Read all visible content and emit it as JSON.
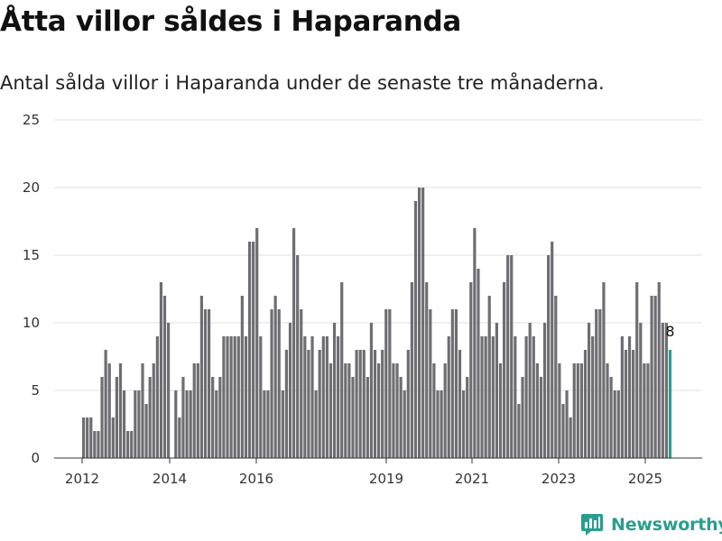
{
  "title": "Åtta villor såldes i Haparanda",
  "subtitle": "Antal sålda villor i Haparanda under de senaste tre månaderna.",
  "brand": {
    "name": "Newsworthy",
    "icon": "newsworthy-logo-icon"
  },
  "colors": {
    "bar": "#6e6d72",
    "highlight": "#2a9d8f",
    "grid": "#e0e0e0",
    "axis": "#333333"
  },
  "chart_data": {
    "type": "bar",
    "title": "Åtta villor såldes i Haparanda",
    "subtitle": "Antal sålda villor i Haparanda under de senaste tre månaderna.",
    "xlabel": "",
    "ylabel": "",
    "ylim": [
      0,
      25
    ],
    "yticks": [
      0,
      5,
      10,
      15,
      20,
      25
    ],
    "xticks": [
      "2012",
      "2014",
      "2016",
      "2019",
      "2021",
      "2023",
      "2025"
    ],
    "grid": true,
    "legend": "none",
    "series": [
      {
        "values": [
          3,
          3,
          3,
          2,
          2,
          6,
          8,
          7,
          3,
          6,
          7,
          5,
          2,
          2,
          5,
          5,
          7,
          4,
          6,
          7,
          9,
          13,
          12,
          10,
          0,
          5,
          3,
          6,
          5,
          5,
          7,
          7,
          12,
          11,
          11,
          6,
          5,
          6,
          9,
          9,
          9,
          9,
          9,
          12,
          9,
          16,
          16,
          17,
          9,
          5,
          5,
          11,
          12,
          11,
          5,
          8,
          10,
          17,
          15,
          11,
          9,
          8,
          9,
          5,
          8,
          9,
          9,
          7,
          10,
          9,
          13,
          7,
          7,
          6,
          8,
          8,
          8,
          6,
          10,
          8,
          7,
          8,
          11,
          11,
          7,
          7,
          6,
          5,
          8,
          13,
          19,
          20,
          20,
          13,
          11,
          7,
          5,
          5,
          7,
          9,
          11,
          11,
          8,
          5,
          6,
          13,
          17,
          14,
          9,
          9,
          12,
          9,
          10,
          7,
          13,
          15,
          15,
          9,
          4,
          6,
          9,
          10,
          9,
          7,
          6,
          10,
          15,
          16,
          12,
          7,
          4,
          5,
          3,
          7,
          7,
          7,
          8,
          10,
          9,
          11,
          11,
          13,
          7,
          6,
          5,
          5,
          9,
          8,
          9,
          8,
          13,
          10,
          7,
          7,
          12,
          12,
          13,
          10,
          10,
          8
        ]
      }
    ],
    "highlight_label": "8"
  }
}
